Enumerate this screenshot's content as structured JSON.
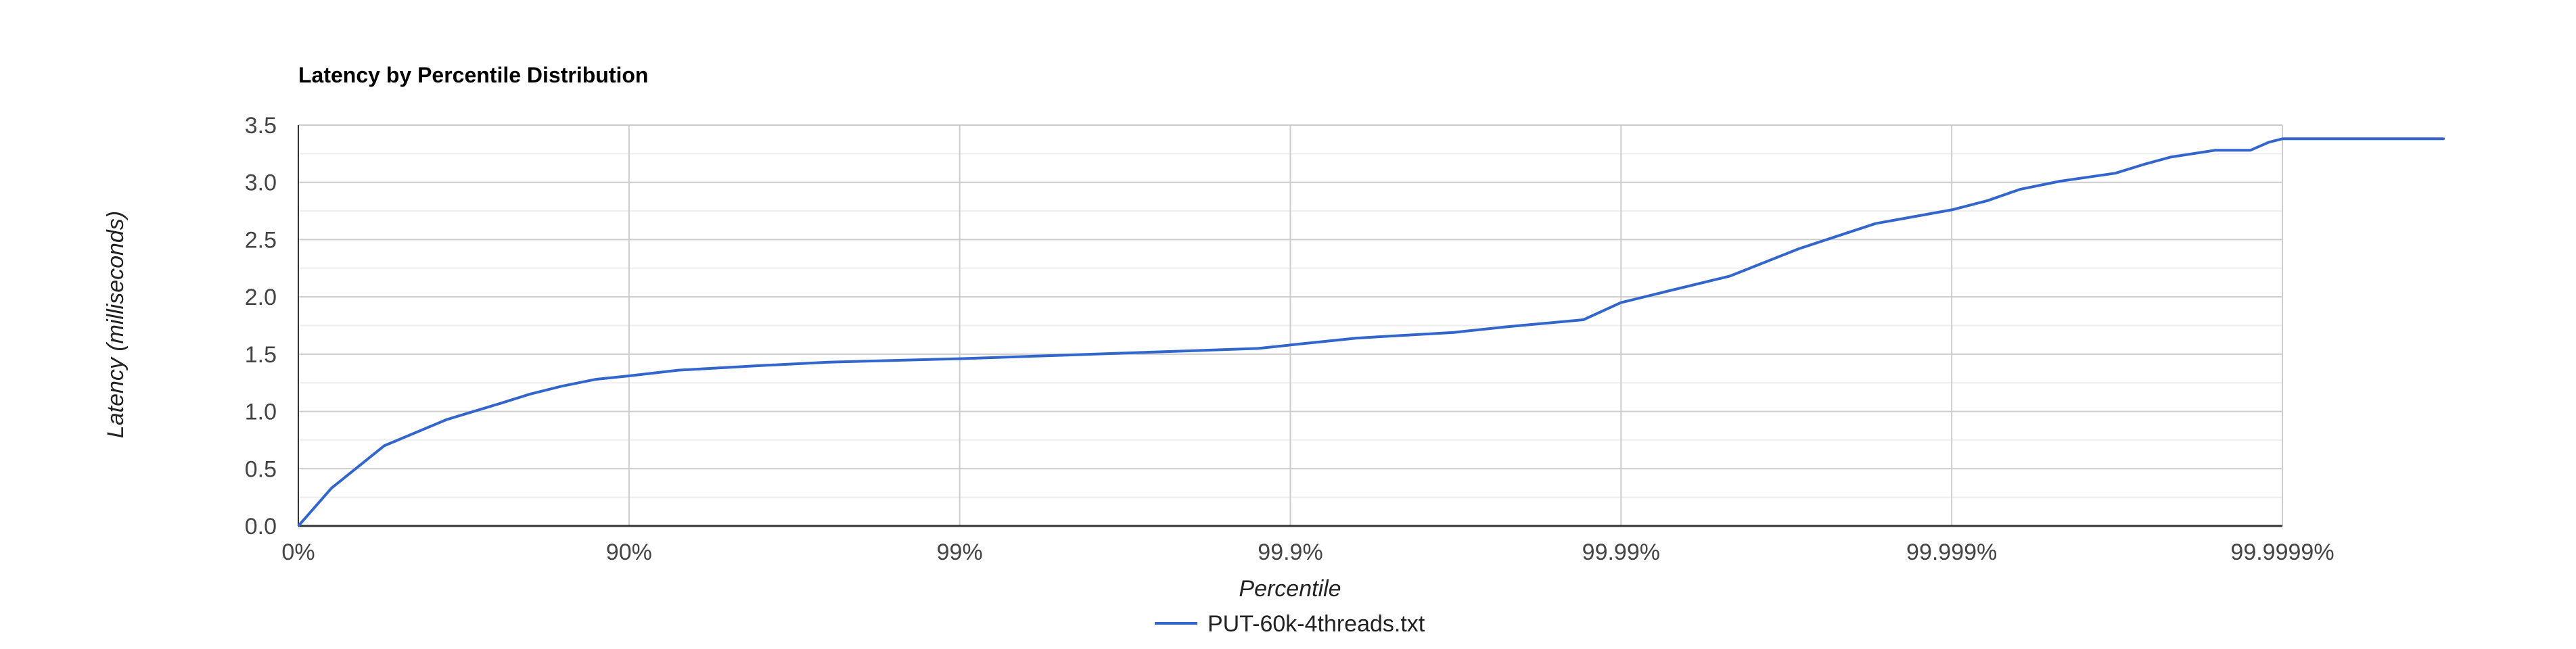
{
  "chart_data": {
    "type": "line",
    "title": "Latency by Percentile Distribution",
    "xlabel": "Percentile",
    "ylabel": "Latency (milliseconds)",
    "x_scale": "log of 1/(1 - percentile)",
    "x_tick_labels": [
      "0%",
      "90%",
      "99%",
      "99.9%",
      "99.99%",
      "99.999%",
      "99.9999%"
    ],
    "y_ticks": [
      0.0,
      0.5,
      1.0,
      1.5,
      2.0,
      2.5,
      3.0,
      3.5
    ],
    "y_tick_labels": [
      "0.0",
      "0.5",
      "1.0",
      "1.5",
      "2.0",
      "2.5",
      "3.0",
      "3.5"
    ],
    "ylim": [
      0,
      3.5
    ],
    "grid": true,
    "legend_position": "bottom",
    "series": [
      {
        "name": "PUT-60k-4threads.txt",
        "color": "#3366cc",
        "x_percentile": [
          0,
          20.6,
          45.0,
          64.5,
          75.5,
          80.0,
          84.0,
          87.4,
          90.0,
          92.9,
          96.0,
          97.5,
          99.0,
          99.5,
          99.75,
          99.875,
          99.9,
          99.937,
          99.968,
          99.978,
          99.987,
          99.99,
          99.993,
          99.9953,
          99.9971,
          99.9983,
          99.999,
          99.99922,
          99.99938,
          99.99953,
          99.99968,
          99.99974,
          99.999782,
          99.99984,
          99.999875,
          99.99989,
          99.9999,
          99.99993,
          99.999968,
          99.9999772
        ],
        "latency_ms": [
          0.0,
          0.33,
          0.7,
          0.93,
          1.07,
          1.15,
          1.22,
          1.28,
          1.31,
          1.36,
          1.4,
          1.43,
          1.46,
          1.49,
          1.52,
          1.55,
          1.58,
          1.64,
          1.69,
          1.74,
          1.8,
          1.95,
          2.06,
          2.18,
          2.42,
          2.64,
          2.76,
          2.84,
          2.94,
          3.01,
          3.08,
          3.16,
          3.22,
          3.28,
          3.28,
          3.35,
          3.38,
          3.38,
          3.38,
          3.39
        ]
      }
    ]
  }
}
